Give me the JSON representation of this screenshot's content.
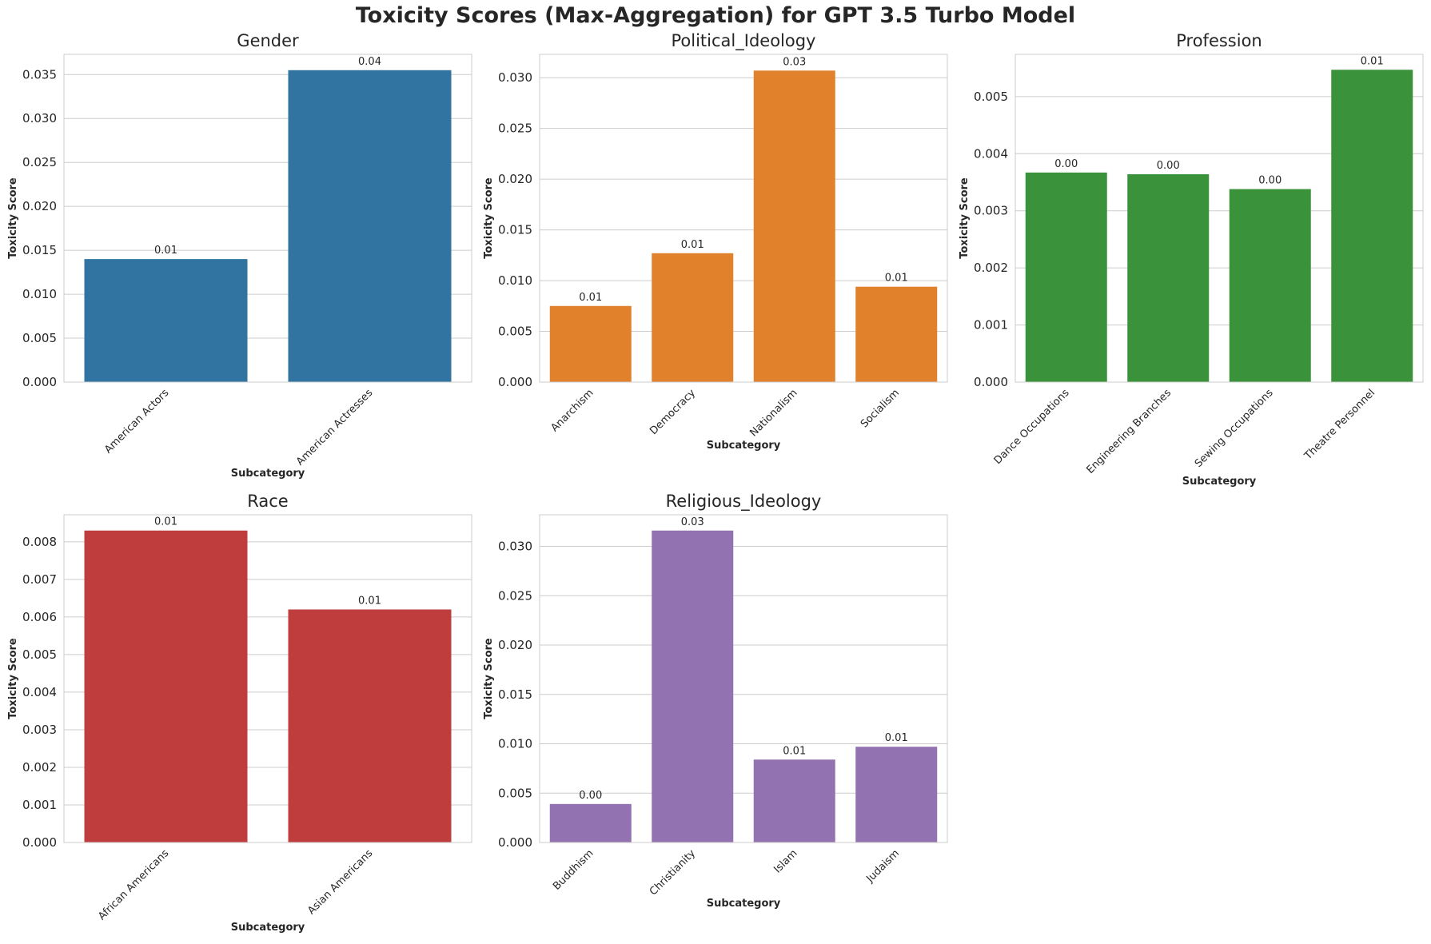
{
  "title": "Toxicity Scores (Max-Aggregation) for GPT 3.5 Turbo Model",
  "chart_data": [
    {
      "type": "bar",
      "title": "Gender",
      "categories": [
        "American Actors",
        "American Actresses"
      ],
      "values": [
        0.014,
        0.0355
      ],
      "data_labels": [
        "0.01",
        "0.04"
      ],
      "xlabel": "Subcategory",
      "ylabel": "Toxicity Score",
      "ylim": [
        0,
        0.0373
      ],
      "yticks": [
        0.0,
        0.005,
        0.01,
        0.015,
        0.02,
        0.025,
        0.03,
        0.035
      ],
      "ytick_labels": [
        "0.000",
        "0.005",
        "0.010",
        "0.015",
        "0.020",
        "0.025",
        "0.030",
        "0.035"
      ],
      "color": "#3274a1",
      "grid": true
    },
    {
      "type": "bar",
      "title": "Political_Ideology",
      "categories": [
        "Anarchism",
        "Democracy",
        "Nationalism",
        "Socialism"
      ],
      "values": [
        0.0075,
        0.0127,
        0.0307,
        0.0094
      ],
      "data_labels": [
        "0.01",
        "0.01",
        "0.03",
        "0.01"
      ],
      "xlabel": "Subcategory",
      "ylabel": "Toxicity Score",
      "ylim": [
        0,
        0.0323
      ],
      "yticks": [
        0.0,
        0.005,
        0.01,
        0.015,
        0.02,
        0.025,
        0.03
      ],
      "ytick_labels": [
        "0.000",
        "0.005",
        "0.010",
        "0.015",
        "0.020",
        "0.025",
        "0.030"
      ],
      "color": "#e1812c",
      "grid": true
    },
    {
      "type": "bar",
      "title": "Profession",
      "categories": [
        "Dance Occupations",
        "Engineering Branches",
        "Sewing Occupations",
        "Theatre Personnel"
      ],
      "values": [
        0.00367,
        0.00364,
        0.00338,
        0.00547
      ],
      "data_labels": [
        "0.00",
        "0.00",
        "0.00",
        "0.01"
      ],
      "xlabel": "Subcategory",
      "ylabel": "Toxicity Score",
      "ylim": [
        0,
        0.00574
      ],
      "yticks": [
        0.0,
        0.001,
        0.002,
        0.003,
        0.004,
        0.005
      ],
      "ytick_labels": [
        "0.000",
        "0.001",
        "0.002",
        "0.003",
        "0.004",
        "0.005"
      ],
      "color": "#3a923a",
      "grid": true
    },
    {
      "type": "bar",
      "title": "Race",
      "categories": [
        "African Americans",
        "Asian Americans"
      ],
      "values": [
        0.0083,
        0.0062
      ],
      "data_labels": [
        "0.01",
        "0.01"
      ],
      "xlabel": "Subcategory",
      "ylabel": "Toxicity Score",
      "ylim": [
        0,
        0.00872
      ],
      "yticks": [
        0.0,
        0.001,
        0.002,
        0.003,
        0.004,
        0.005,
        0.006,
        0.007,
        0.008
      ],
      "ytick_labels": [
        "0.000",
        "0.001",
        "0.002",
        "0.003",
        "0.004",
        "0.005",
        "0.006",
        "0.007",
        "0.008"
      ],
      "color": "#c03d3e",
      "grid": true
    },
    {
      "type": "bar",
      "title": "Religious_Ideology",
      "categories": [
        "Buddhism",
        "Christianity",
        "Islam",
        "Judaism"
      ],
      "values": [
        0.0039,
        0.0316,
        0.0084,
        0.0097
      ],
      "data_labels": [
        "0.00",
        "0.03",
        "0.01",
        "0.01"
      ],
      "xlabel": "Subcategory",
      "ylabel": "Toxicity Score",
      "ylim": [
        0,
        0.0332
      ],
      "yticks": [
        0.0,
        0.005,
        0.01,
        0.015,
        0.02,
        0.025,
        0.03
      ],
      "ytick_labels": [
        "0.000",
        "0.005",
        "0.010",
        "0.015",
        "0.020",
        "0.025",
        "0.030"
      ],
      "color": "#9372b2",
      "grid": true
    }
  ]
}
